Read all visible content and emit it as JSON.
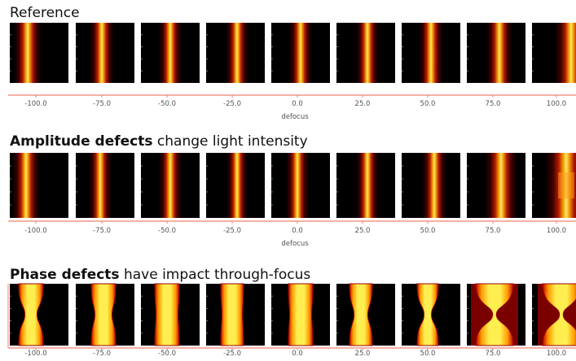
{
  "panels": [
    {
      "title": "Reference",
      "ticks": [
        "-100.0",
        "-75.0",
        "-50.0",
        "-25.0",
        "0.0",
        "25.0",
        "50.0",
        "75.0",
        "100.0"
      ],
      "axis_label": "defocus"
    },
    {
      "title_bold": "Amplitude defects",
      "title": " change light intensity",
      "ticks": [
        "-100.0",
        "-75.0",
        "-50.0",
        "-25.0",
        "0.0",
        "25.0",
        "50.0",
        "75.0",
        "100.0"
      ],
      "axis_label": "defocus"
    },
    {
      "title_bold": "Phase defects",
      "title": " have impact through-focus",
      "ticks": [
        "-100.0",
        "-75.0",
        "-50.0",
        "-25.0",
        "0.0",
        "25.0",
        "50.0",
        "75.0",
        "100.0"
      ]
    }
  ]
}
